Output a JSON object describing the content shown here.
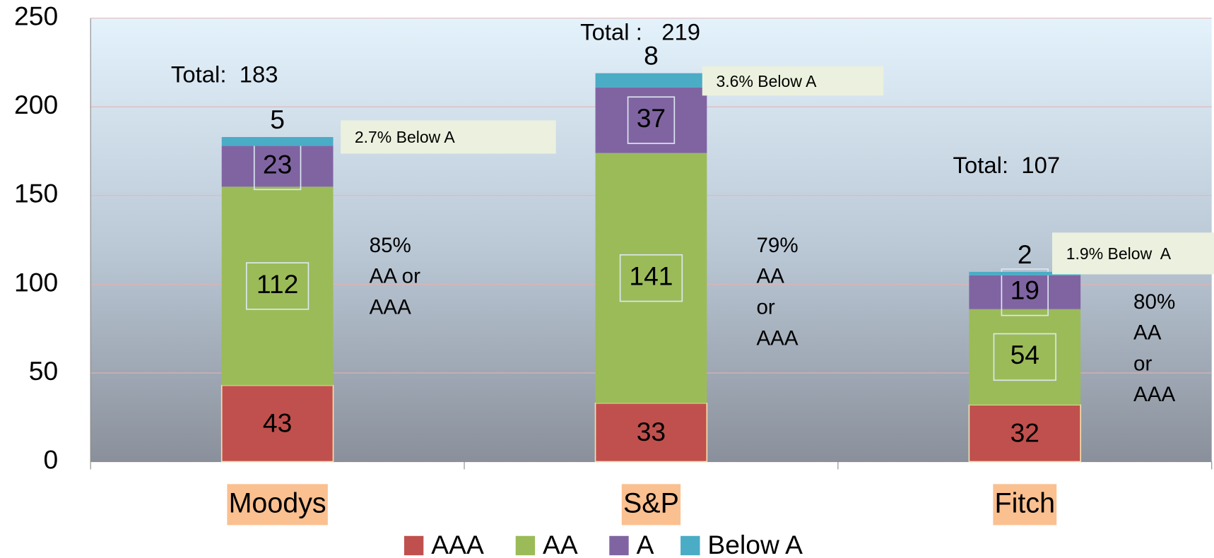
{
  "chart_data": {
    "type": "stacked_bar",
    "categories": [
      "Moodys",
      "S&P",
      "Fitch"
    ],
    "series": [
      {
        "name": "AAA",
        "color": "#c0504d",
        "values": [
          43,
          33,
          32
        ]
      },
      {
        "name": "AA",
        "color": "#9bbb59",
        "values": [
          112,
          141,
          54
        ]
      },
      {
        "name": "A",
        "color": "#8064a2",
        "values": [
          23,
          37,
          19
        ]
      },
      {
        "name": "Below A",
        "color": "#4bacc6",
        "values": [
          5,
          8,
          2
        ]
      }
    ],
    "ylim": [
      0,
      250
    ],
    "yticks": [
      0,
      50,
      100,
      150,
      200,
      250
    ],
    "grid": true,
    "legend": "bottom",
    "totals": [
      "Total:  183",
      "Total :   219",
      "Total:  107"
    ],
    "below_a_notes": [
      "2.7% Below A",
      "3.6% Below A",
      "1.9% Below  A"
    ],
    "share_notes": [
      [
        "85%",
        "AA or",
        "AAA"
      ],
      [
        "79%",
        "AA",
        "or",
        "AAA"
      ],
      [
        "80%",
        "AA",
        "or",
        "AAA"
      ]
    ]
  }
}
